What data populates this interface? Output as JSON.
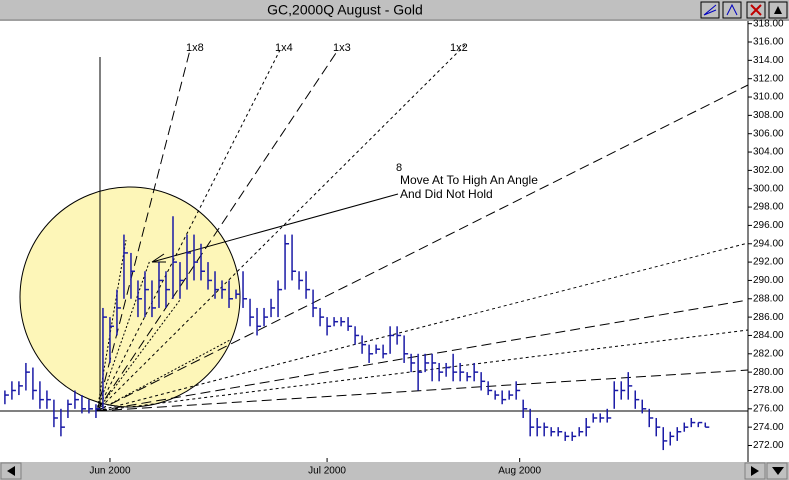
{
  "chart_data": {
    "type": "ohlc",
    "title": "GC,2000Q  August - Gold",
    "color": "#1a1aa6",
    "x": [
      0,
      1,
      2,
      3,
      4,
      5,
      6,
      7,
      8,
      9,
      10,
      11,
      12,
      13,
      14,
      15,
      16,
      17,
      18,
      19,
      20,
      21,
      22,
      23,
      24,
      25,
      26,
      27,
      28,
      29,
      30,
      31,
      32,
      33,
      34,
      35,
      36,
      37,
      38,
      39,
      40,
      41,
      42,
      43,
      44,
      45,
      46,
      47,
      48,
      49,
      50,
      51,
      52,
      53,
      54,
      55,
      56,
      57,
      58,
      59,
      60,
      61,
      62,
      63,
      64,
      65,
      66,
      67,
      68,
      69,
      70,
      71,
      72,
      73,
      74,
      75,
      76,
      77,
      78,
      79,
      80,
      81,
      82,
      83,
      84,
      85,
      86,
      87,
      88,
      89,
      90,
      91,
      92,
      93,
      94,
      95,
      96,
      97,
      98,
      99,
      100
    ],
    "high": [
      278,
      279,
      279,
      281,
      280.5,
      279,
      278,
      277,
      276,
      277,
      278,
      277.5,
      277,
      276.5,
      287,
      286,
      289,
      295,
      293,
      290,
      291,
      290,
      292,
      291,
      297,
      292,
      295,
      295,
      294,
      292,
      291,
      290,
      290,
      289,
      291,
      288,
      287,
      287,
      288,
      290,
      295,
      295,
      291,
      291,
      289,
      287,
      286,
      286,
      286,
      286,
      285,
      284,
      283,
      283,
      283,
      285,
      285,
      284,
      282,
      282,
      282,
      282,
      281,
      281,
      282,
      281,
      280,
      281,
      280,
      279,
      278,
      278,
      278,
      279,
      277,
      276,
      275,
      274.5,
      274,
      274,
      273.5,
      273.5,
      274,
      275,
      275.5,
      275.5,
      276,
      279,
      279,
      280,
      278,
      277,
      276,
      275,
      274,
      273.5,
      274,
      274.5,
      275,
      274.5,
      274.5
    ],
    "low": [
      276.5,
      277,
      277.5,
      278,
      277,
      276,
      276,
      274,
      273,
      275,
      276,
      275.5,
      275.5,
      275,
      276,
      281,
      284,
      288,
      288,
      286,
      286,
      286,
      287,
      287,
      288,
      288,
      289,
      290,
      290,
      289,
      288,
      288,
      287,
      288,
      287,
      285,
      284,
      285,
      286,
      286,
      289,
      290,
      289,
      288,
      286,
      285,
      284,
      285,
      285,
      284.5,
      283,
      282,
      281,
      282,
      281.5,
      282,
      283,
      281,
      280,
      278,
      280,
      279,
      279,
      279.5,
      279,
      279,
      279,
      279,
      278,
      277.5,
      277,
      276.5,
      277,
      277,
      275,
      273,
      273,
      273,
      273,
      273,
      272.5,
      272.5,
      273,
      273,
      274.5,
      274.5,
      274.5,
      276,
      277,
      277,
      276,
      275.5,
      274,
      273,
      271.5,
      272,
      272.5,
      273.5,
      274,
      274,
      274
    ],
    "close": [
      277.5,
      278,
      278.5,
      280,
      278,
      277,
      277,
      275,
      274,
      276.5,
      277,
      276,
      276,
      276,
      286,
      285,
      287,
      293,
      291,
      288,
      289,
      287,
      290,
      289,
      292,
      290,
      293,
      292,
      291,
      290,
      289,
      289,
      288,
      288.5,
      288,
      286,
      285,
      286,
      287,
      289,
      294,
      291,
      290,
      289,
      287,
      286,
      285,
      285.5,
      285.5,
      285,
      284,
      283,
      282,
      282.5,
      282,
      284,
      284,
      282,
      281,
      280,
      281,
      281,
      280,
      280.5,
      280,
      280,
      279.5,
      280,
      279,
      278,
      277.5,
      277,
      277.5,
      278,
      276,
      274,
      274,
      274,
      273.5,
      273.5,
      273,
      273,
      273.5,
      274,
      275,
      275,
      275,
      278,
      278,
      278.5,
      277,
      276,
      275,
      274,
      272.5,
      273,
      273.5,
      274,
      274.5,
      274.5,
      274
    ],
    "xlim": [
      -0.7,
      106.1
    ],
    "xticks": [
      {
        "value": 15,
        "label": "Jun 2000"
      },
      {
        "value": 46,
        "label": "Jul 2000"
      },
      {
        "value": 73.5,
        "label": "Aug 2000"
      }
    ],
    "ylim": [
      270.2,
      318.4
    ],
    "yticks": [
      {
        "value": 272,
        "label": "272.00"
      },
      {
        "value": 274,
        "label": "274.00"
      },
      {
        "value": 276,
        "label": "276.00"
      },
      {
        "value": 278,
        "label": "278.00"
      },
      {
        "value": 280,
        "label": "280.00"
      },
      {
        "value": 282,
        "label": "282.00"
      },
      {
        "value": 284,
        "label": "284.00"
      },
      {
        "value": 286,
        "label": "286.00"
      },
      {
        "value": 288,
        "label": "288.00"
      },
      {
        "value": 290,
        "label": "290.00"
      },
      {
        "value": 292,
        "label": "292.00"
      },
      {
        "value": 294,
        "label": "294.00"
      },
      {
        "value": 296,
        "label": "296.00"
      },
      {
        "value": 298,
        "label": "298.00"
      },
      {
        "value": 300,
        "label": "300.00"
      },
      {
        "value": 302,
        "label": "302.00"
      },
      {
        "value": 304,
        "label": "304.00"
      },
      {
        "value": 306,
        "label": "306.00"
      },
      {
        "value": 308,
        "label": "308.00"
      },
      {
        "value": 310,
        "label": "310.00"
      },
      {
        "value": 312,
        "label": "312.00"
      },
      {
        "value": 314,
        "label": "314.00"
      },
      {
        "value": 316,
        "label": "316.00"
      },
      {
        "value": 318,
        "label": "318.00"
      }
    ],
    "annotations": {
      "fan_labels": [
        "1x8",
        "1x4",
        "1x3",
        "1x2"
      ],
      "marker": "8",
      "note_line1": "Move At To High An Angle",
      "note_line2": "And Did Not Hold"
    }
  }
}
